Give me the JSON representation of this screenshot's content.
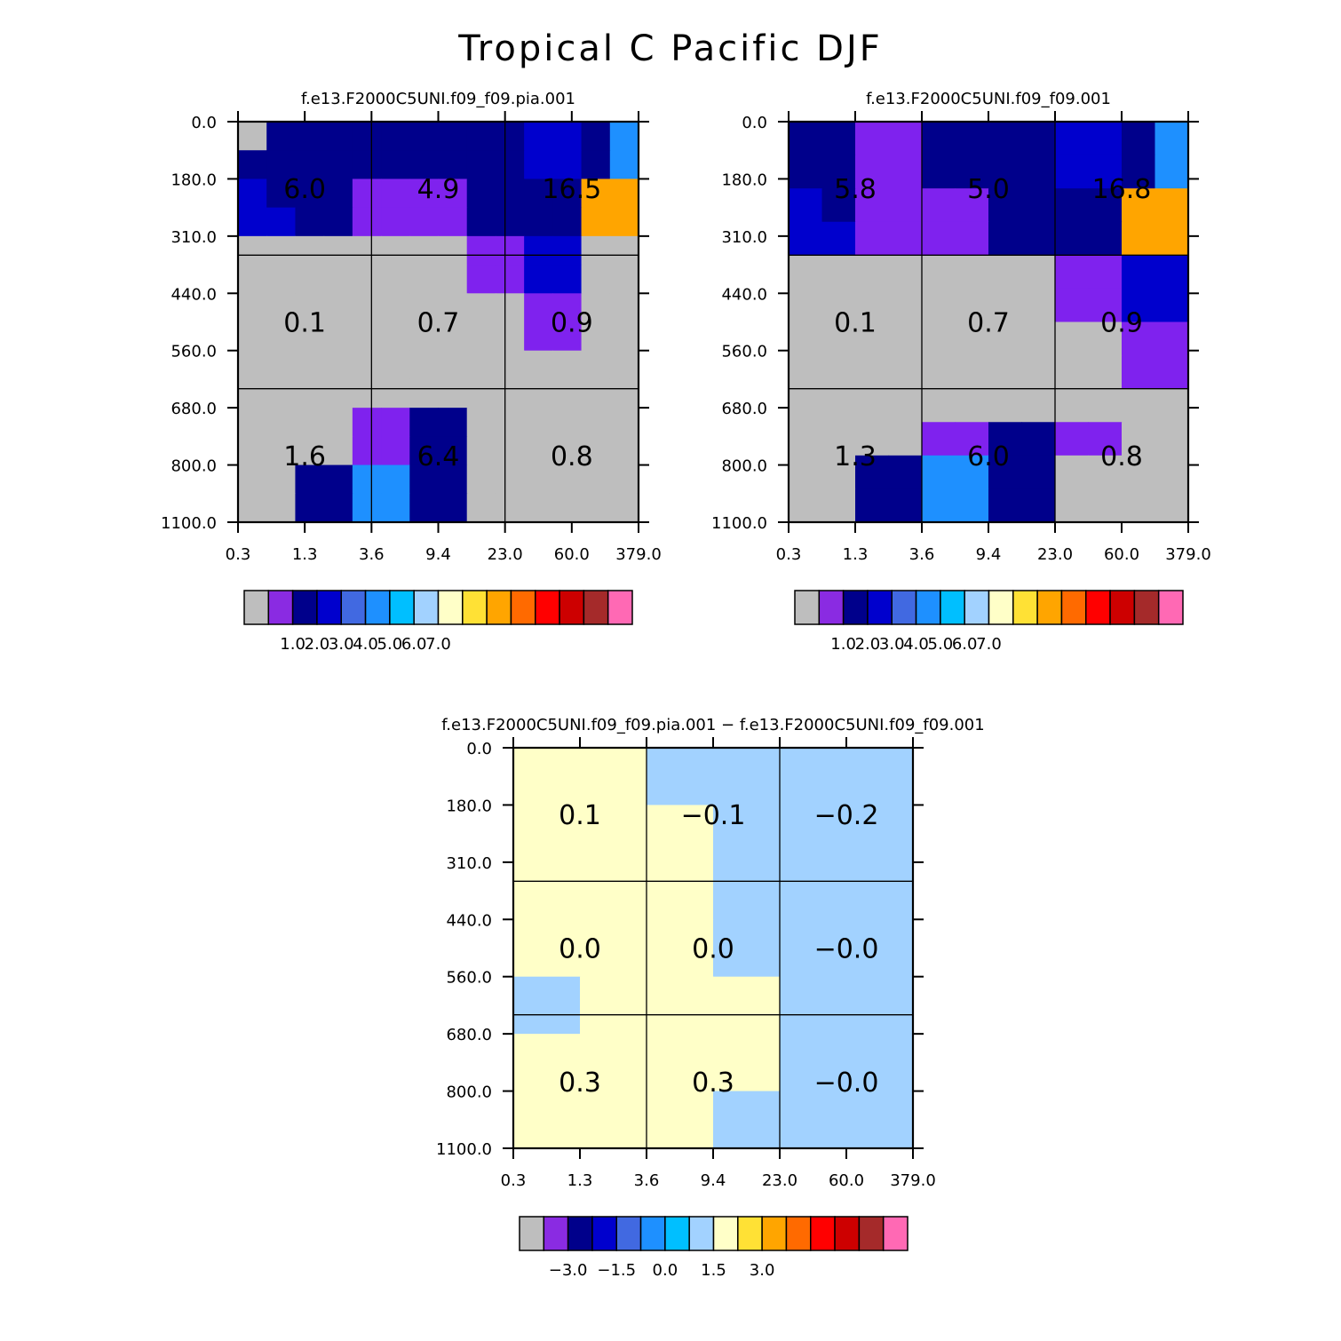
{
  "page_title": "Tropical C Pacific DJF",
  "chart_data": [
    {
      "type": "heatmap",
      "title": "f.e13.F2000C5UNI.f09_f09.pia.001",
      "x_ticks": [
        "0.3",
        "1.3",
        "3.6",
        "9.4",
        "23.0",
        "60.0",
        "379.0"
      ],
      "y_ticks": [
        "0.0",
        "180.0",
        "310.0",
        "440.0",
        "560.0",
        "680.0",
        "800.0",
        "1100.0"
      ],
      "cells": [
        [
          0,
          2,
          2,
          2,
          2,
          2,
          2,
          2,
          2,
          2,
          3,
          3,
          2,
          5
        ],
        [
          2,
          2,
          2,
          2,
          2,
          2,
          2,
          2,
          2,
          2,
          3,
          3,
          2,
          5
        ],
        [
          3,
          2,
          2,
          2,
          1,
          1,
          1,
          1,
          2,
          2,
          2,
          2,
          9,
          9
        ],
        [
          3,
          3,
          2,
          2,
          1,
          1,
          1,
          1,
          2,
          2,
          2,
          2,
          9,
          9
        ],
        [
          0,
          0,
          0,
          0,
          0,
          0,
          0,
          0,
          1,
          1,
          3,
          3,
          0,
          0
        ],
        [
          0,
          0,
          0,
          0,
          0,
          0,
          0,
          0,
          1,
          1,
          3,
          3,
          0,
          0
        ],
        [
          0,
          0,
          0,
          0,
          0,
          0,
          0,
          0,
          0,
          0,
          1,
          1,
          0,
          0
        ],
        [
          0,
          0,
          0,
          0,
          0,
          0,
          0,
          0,
          0,
          0,
          1,
          1,
          0,
          0
        ],
        [
          0,
          0,
          0,
          0,
          0,
          0,
          0,
          0,
          0,
          0,
          0,
          0,
          0,
          0
        ],
        [
          0,
          0,
          0,
          0,
          0,
          0,
          0,
          0,
          0,
          0,
          0,
          0,
          0,
          0
        ],
        [
          0,
          0,
          0,
          0,
          1,
          1,
          2,
          2,
          0,
          0,
          0,
          0,
          0,
          0
        ],
        [
          0,
          0,
          0,
          0,
          1,
          1,
          2,
          2,
          0,
          0,
          0,
          0,
          0,
          0
        ],
        [
          0,
          0,
          2,
          2,
          5,
          5,
          2,
          2,
          0,
          0,
          0,
          0,
          0,
          0
        ],
        [
          0,
          0,
          2,
          2,
          5,
          5,
          2,
          2,
          0,
          0,
          0,
          0,
          0,
          0
        ]
      ],
      "grid_labels": [
        [
          "6.0",
          "4.9",
          "16.5"
        ],
        [
          "0.1",
          "0.7",
          "0.9"
        ],
        [
          "1.6",
          "6.4",
          "0.8"
        ]
      ],
      "colorbar_labels": [
        "1.0",
        "2.0",
        "3.0",
        "4.0",
        "5.0",
        "6.0",
        "7.0"
      ]
    },
    {
      "type": "heatmap",
      "title": "f.e13.F2000C5UNI.f09_f09.001",
      "x_ticks": [
        "0.3",
        "1.3",
        "3.6",
        "9.4",
        "23.0",
        "60.0",
        "379.0"
      ],
      "y_ticks": [
        "0.0",
        "180.0",
        "310.0",
        "440.0",
        "560.0",
        "680.0",
        "800.0",
        "1100.0"
      ],
      "cells": [
        [
          2,
          2,
          1,
          1,
          2,
          2,
          2,
          2,
          3,
          3,
          2,
          5
        ],
        [
          2,
          2,
          1,
          1,
          2,
          2,
          2,
          2,
          3,
          3,
          2,
          5
        ],
        [
          3,
          2,
          1,
          1,
          1,
          1,
          2,
          2,
          2,
          2,
          9,
          9
        ],
        [
          3,
          3,
          1,
          1,
          1,
          1,
          2,
          2,
          2,
          2,
          9,
          9
        ],
        [
          0,
          0,
          0,
          0,
          0,
          0,
          0,
          0,
          1,
          1,
          3,
          3
        ],
        [
          0,
          0,
          0,
          0,
          0,
          0,
          0,
          0,
          1,
          1,
          3,
          3
        ],
        [
          0,
          0,
          0,
          0,
          0,
          0,
          0,
          0,
          0,
          0,
          1,
          1
        ],
        [
          0,
          0,
          0,
          0,
          0,
          0,
          0,
          0,
          0,
          0,
          1,
          1
        ],
        [
          0,
          0,
          0,
          0,
          0,
          0,
          0,
          0,
          0,
          0,
          0,
          0
        ],
        [
          0,
          0,
          0,
          0,
          1,
          1,
          2,
          2,
          1,
          1,
          0,
          0
        ],
        [
          0,
          0,
          2,
          2,
          5,
          5,
          2,
          2,
          0,
          0,
          0,
          0
        ],
        [
          0,
          0,
          2,
          2,
          5,
          5,
          2,
          2,
          0,
          0,
          0,
          0
        ]
      ],
      "grid_labels": [
        [
          "5.8",
          "5.0",
          "16.8"
        ],
        [
          "0.1",
          "0.7",
          "0.9"
        ],
        [
          "1.3",
          "6.0",
          "0.8"
        ]
      ],
      "colorbar_labels": [
        "1.0",
        "2.0",
        "3.0",
        "4.0",
        "5.0",
        "6.0",
        "7.0"
      ]
    },
    {
      "type": "heatmap",
      "title": "f.e13.F2000C5UNI.f09_f09.pia.001 − f.e13.F2000C5UNI.f09_f09.001",
      "x_ticks": [
        "0.3",
        "1.3",
        "3.6",
        "9.4",
        "23.0",
        "60.0",
        "379.0"
      ],
      "y_ticks": [
        "0.0",
        "180.0",
        "310.0",
        "440.0",
        "560.0",
        "680.0",
        "800.0",
        "1100.0"
      ],
      "cells": [
        [
          7,
          7,
          6,
          6,
          6,
          6
        ],
        [
          7,
          7,
          7,
          6,
          6,
          6
        ],
        [
          7,
          7,
          7,
          6,
          6,
          6
        ],
        [
          7,
          7,
          7,
          6,
          6,
          6
        ],
        [
          6,
          7,
          7,
          7,
          6,
          6
        ],
        [
          7,
          7,
          7,
          7,
          6,
          6
        ],
        [
          7,
          7,
          7,
          6,
          6,
          6
        ]
      ],
      "grid_labels": [
        [
          "0.1",
          "−0.1",
          "−0.2"
        ],
        [
          "0.0",
          "0.0",
          "−0.0"
        ],
        [
          "0.3",
          "0.3",
          "−0.0"
        ]
      ],
      "colorbar_labels": [
        "−3.0",
        "−1.5",
        "0.0",
        "1.5",
        "3.0"
      ]
    }
  ],
  "colorbar_colors": [
    "#bebebe",
    "#8a2be2",
    "#00008b",
    "#0000cd",
    "#4169e1",
    "#1e90ff",
    "#00bfff",
    "#a2d2ff",
    "#ffffc8",
    "#ffe135",
    "#ffa500",
    "#ff6a00",
    "#ff0000",
    "#cd0000",
    "#a52a2a",
    "#ff69b4"
  ],
  "heatmap_colors": [
    "#bebebe",
    "#7f22ee",
    "#00008b",
    "#0000cd",
    "#4169e1",
    "#1e90ff",
    "#a2d2ff",
    "#ffffc8",
    "#ffe135",
    "#ffa500",
    "#ff0000"
  ]
}
